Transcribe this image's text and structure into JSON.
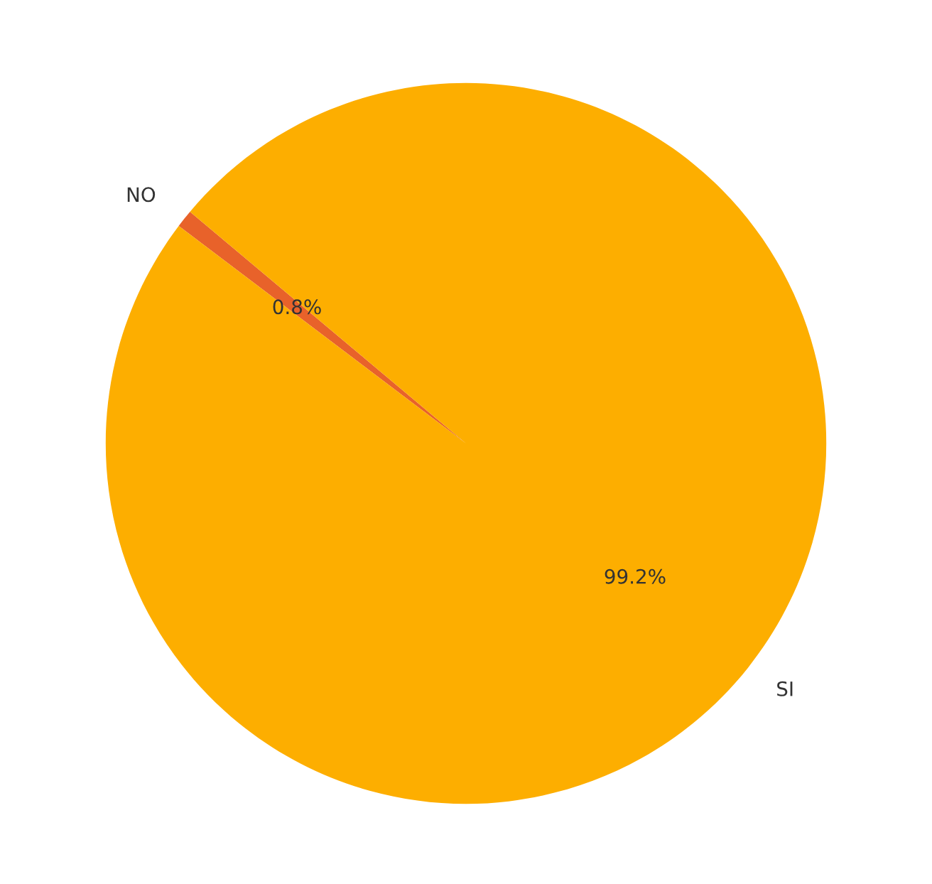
{
  "chart_data": {
    "type": "pie",
    "categories": [
      "NO",
      "SI"
    ],
    "values": [
      0.8,
      99.2
    ],
    "colors": [
      "#e8622a",
      "#fdae00"
    ],
    "value_labels": [
      "0.8%",
      "99.2%"
    ]
  }
}
